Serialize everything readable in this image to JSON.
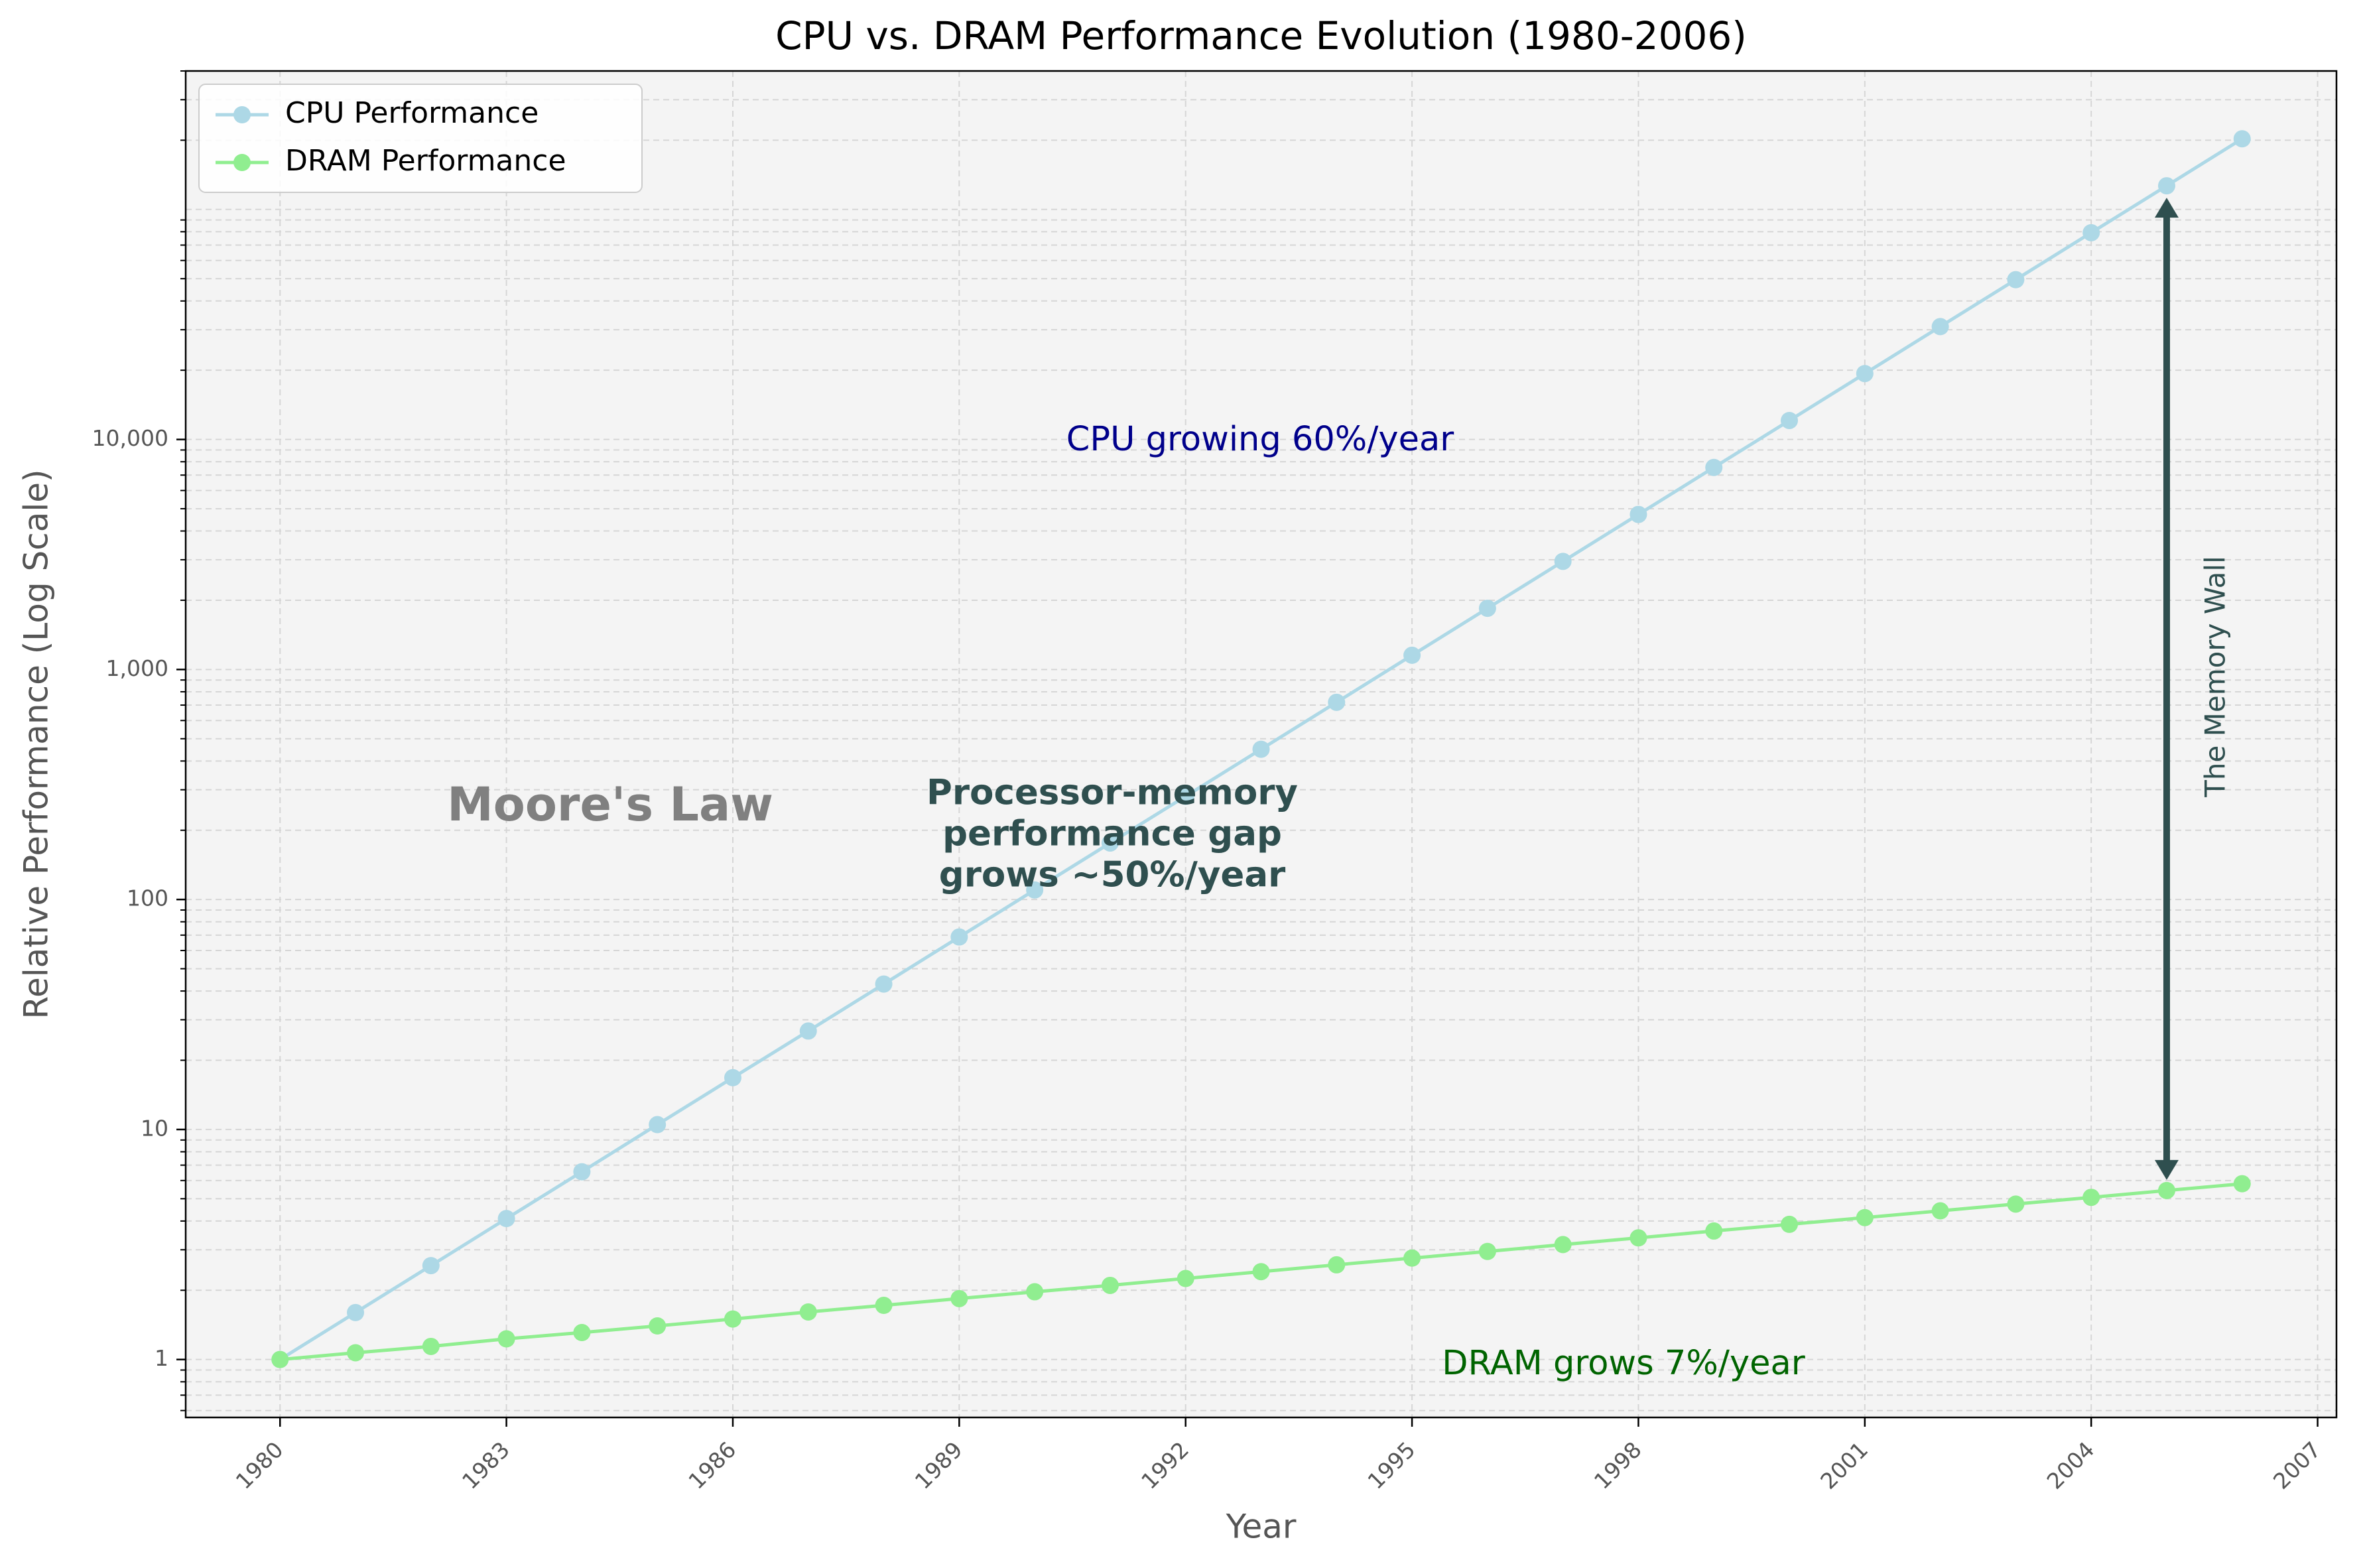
{
  "chart_data": {
    "type": "line",
    "title": "CPU vs. DRAM Performance Evolution (1980-2006)",
    "xlabel": "Year",
    "ylabel": "Relative Performance (Log Scale)",
    "yscale": "log",
    "xlim": [
      1978.75,
      2007.25
    ],
    "ylim": [
      0.56,
      400000
    ],
    "x_ticks": [
      1980,
      1983,
      1986,
      1989,
      1992,
      1995,
      1998,
      2001,
      2004,
      2007
    ],
    "y_ticks": [
      1,
      10,
      100,
      1000,
      10000
    ],
    "y_tick_labels": [
      "1",
      "10",
      "100",
      "1,000",
      "10,000"
    ],
    "grid": true,
    "legend_position": "top-left",
    "x": [
      1980,
      1981,
      1982,
      1983,
      1984,
      1985,
      1986,
      1987,
      1988,
      1989,
      1990,
      1991,
      1992,
      1993,
      1994,
      1995,
      1996,
      1997,
      1998,
      1999,
      2000,
      2001,
      2002,
      2003,
      2004,
      2005,
      2006
    ],
    "series": [
      {
        "name": "CPU Performance",
        "color": "#add8e6",
        "values": [
          1,
          1.6,
          2.56,
          4.1,
          6.55,
          10.5,
          16.8,
          26.8,
          42.9,
          68.7,
          110,
          176,
          281,
          450,
          720,
          1153,
          1845,
          2951,
          4722,
          7556,
          12089,
          19343,
          30949,
          49518,
          79228,
          126765,
          202824
        ]
      },
      {
        "name": "DRAM Performance",
        "color": "#90ee90",
        "values": [
          1,
          1.07,
          1.14,
          1.23,
          1.31,
          1.4,
          1.5,
          1.61,
          1.72,
          1.84,
          1.97,
          2.1,
          2.25,
          2.41,
          2.58,
          2.76,
          2.95,
          3.16,
          3.38,
          3.62,
          3.87,
          4.14,
          4.43,
          4.74,
          5.07,
          5.43,
          5.81
        ]
      }
    ],
    "annotations": {
      "moores_law": "Moore's Law",
      "gap_line1": "Processor-memory",
      "gap_line2": "performance gap",
      "gap_line3": "grows ~50%/year",
      "cpu_growth": "CPU growing 60%/year",
      "dram_growth": "DRAM grows 7%/year",
      "memory_wall": "The Memory Wall"
    },
    "colors": {
      "plot_bg": "#f4f4f4",
      "cpu_text": "#00008b",
      "dram_text": "#006400",
      "gap_text": "#2f4f4f",
      "moore_text": "#808080",
      "arrow": "#2f4f4f",
      "axis_label": "#555555",
      "tick_label": "#555555"
    }
  }
}
